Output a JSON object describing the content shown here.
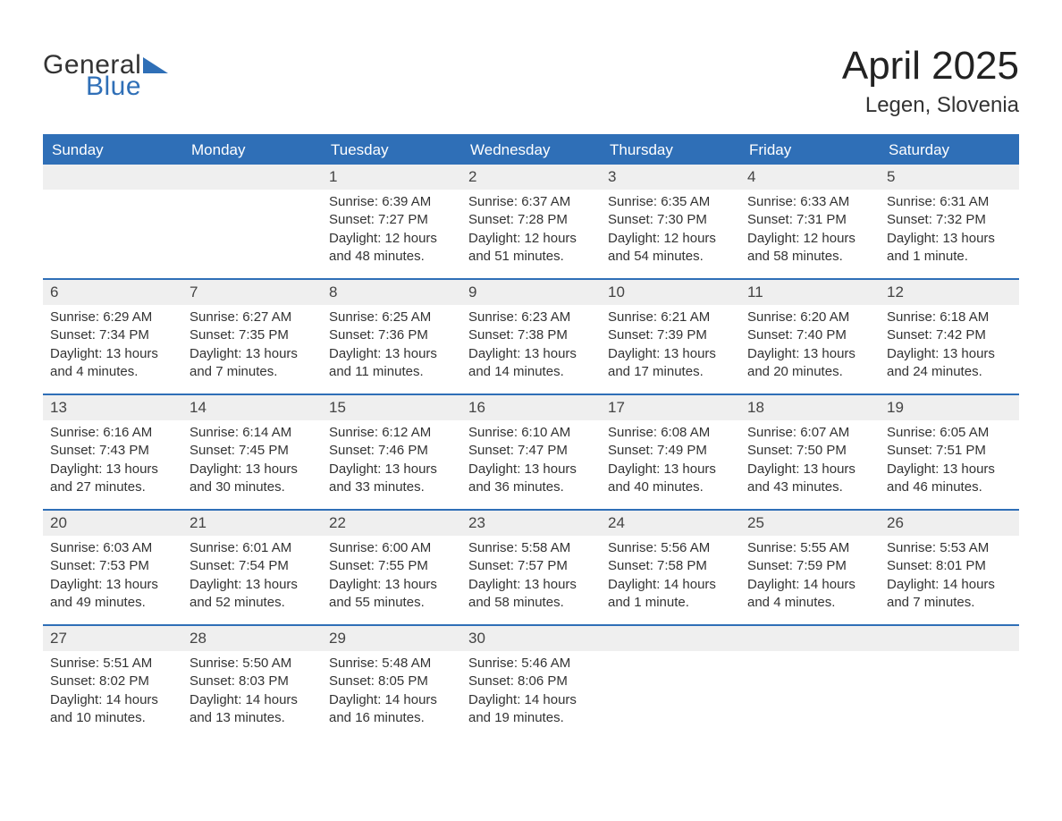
{
  "logo": {
    "text_general": "General",
    "text_blue": "Blue",
    "triangle_color": "#2f6fb7"
  },
  "title": "April 2025",
  "location": "Legen, Slovenia",
  "colors": {
    "header_bg": "#2f6fb7",
    "header_text": "#ffffff",
    "daynum_bg": "#efefef",
    "body_text": "#333333",
    "page_bg": "#ffffff",
    "week_rule": "#2f6fb7"
  },
  "typography": {
    "title_fontsize_pt": 33,
    "location_fontsize_pt": 18,
    "header_fontsize_pt": 13,
    "daynum_fontsize_pt": 13,
    "body_fontsize_pt": 11
  },
  "day_headers": [
    "Sunday",
    "Monday",
    "Tuesday",
    "Wednesday",
    "Thursday",
    "Friday",
    "Saturday"
  ],
  "weeks": [
    [
      null,
      null,
      {
        "n": "1",
        "sunrise": "6:39 AM",
        "sunset": "7:27 PM",
        "daylight": "12 hours and 48 minutes."
      },
      {
        "n": "2",
        "sunrise": "6:37 AM",
        "sunset": "7:28 PM",
        "daylight": "12 hours and 51 minutes."
      },
      {
        "n": "3",
        "sunrise": "6:35 AM",
        "sunset": "7:30 PM",
        "daylight": "12 hours and 54 minutes."
      },
      {
        "n": "4",
        "sunrise": "6:33 AM",
        "sunset": "7:31 PM",
        "daylight": "12 hours and 58 minutes."
      },
      {
        "n": "5",
        "sunrise": "6:31 AM",
        "sunset": "7:32 PM",
        "daylight": "13 hours and 1 minute."
      }
    ],
    [
      {
        "n": "6",
        "sunrise": "6:29 AM",
        "sunset": "7:34 PM",
        "daylight": "13 hours and 4 minutes."
      },
      {
        "n": "7",
        "sunrise": "6:27 AM",
        "sunset": "7:35 PM",
        "daylight": "13 hours and 7 minutes."
      },
      {
        "n": "8",
        "sunrise": "6:25 AM",
        "sunset": "7:36 PM",
        "daylight": "13 hours and 11 minutes."
      },
      {
        "n": "9",
        "sunrise": "6:23 AM",
        "sunset": "7:38 PM",
        "daylight": "13 hours and 14 minutes."
      },
      {
        "n": "10",
        "sunrise": "6:21 AM",
        "sunset": "7:39 PM",
        "daylight": "13 hours and 17 minutes."
      },
      {
        "n": "11",
        "sunrise": "6:20 AM",
        "sunset": "7:40 PM",
        "daylight": "13 hours and 20 minutes."
      },
      {
        "n": "12",
        "sunrise": "6:18 AM",
        "sunset": "7:42 PM",
        "daylight": "13 hours and 24 minutes."
      }
    ],
    [
      {
        "n": "13",
        "sunrise": "6:16 AM",
        "sunset": "7:43 PM",
        "daylight": "13 hours and 27 minutes."
      },
      {
        "n": "14",
        "sunrise": "6:14 AM",
        "sunset": "7:45 PM",
        "daylight": "13 hours and 30 minutes."
      },
      {
        "n": "15",
        "sunrise": "6:12 AM",
        "sunset": "7:46 PM",
        "daylight": "13 hours and 33 minutes."
      },
      {
        "n": "16",
        "sunrise": "6:10 AM",
        "sunset": "7:47 PM",
        "daylight": "13 hours and 36 minutes."
      },
      {
        "n": "17",
        "sunrise": "6:08 AM",
        "sunset": "7:49 PM",
        "daylight": "13 hours and 40 minutes."
      },
      {
        "n": "18",
        "sunrise": "6:07 AM",
        "sunset": "7:50 PM",
        "daylight": "13 hours and 43 minutes."
      },
      {
        "n": "19",
        "sunrise": "6:05 AM",
        "sunset": "7:51 PM",
        "daylight": "13 hours and 46 minutes."
      }
    ],
    [
      {
        "n": "20",
        "sunrise": "6:03 AM",
        "sunset": "7:53 PM",
        "daylight": "13 hours and 49 minutes."
      },
      {
        "n": "21",
        "sunrise": "6:01 AM",
        "sunset": "7:54 PM",
        "daylight": "13 hours and 52 minutes."
      },
      {
        "n": "22",
        "sunrise": "6:00 AM",
        "sunset": "7:55 PM",
        "daylight": "13 hours and 55 minutes."
      },
      {
        "n": "23",
        "sunrise": "5:58 AM",
        "sunset": "7:57 PM",
        "daylight": "13 hours and 58 minutes."
      },
      {
        "n": "24",
        "sunrise": "5:56 AM",
        "sunset": "7:58 PM",
        "daylight": "14 hours and 1 minute."
      },
      {
        "n": "25",
        "sunrise": "5:55 AM",
        "sunset": "7:59 PM",
        "daylight": "14 hours and 4 minutes."
      },
      {
        "n": "26",
        "sunrise": "5:53 AM",
        "sunset": "8:01 PM",
        "daylight": "14 hours and 7 minutes."
      }
    ],
    [
      {
        "n": "27",
        "sunrise": "5:51 AM",
        "sunset": "8:02 PM",
        "daylight": "14 hours and 10 minutes."
      },
      {
        "n": "28",
        "sunrise": "5:50 AM",
        "sunset": "8:03 PM",
        "daylight": "14 hours and 13 minutes."
      },
      {
        "n": "29",
        "sunrise": "5:48 AM",
        "sunset": "8:05 PM",
        "daylight": "14 hours and 16 minutes."
      },
      {
        "n": "30",
        "sunrise": "5:46 AM",
        "sunset": "8:06 PM",
        "daylight": "14 hours and 19 minutes."
      },
      null,
      null,
      null
    ]
  ],
  "labels": {
    "sunrise": "Sunrise: ",
    "sunset": "Sunset: ",
    "daylight": "Daylight: "
  }
}
